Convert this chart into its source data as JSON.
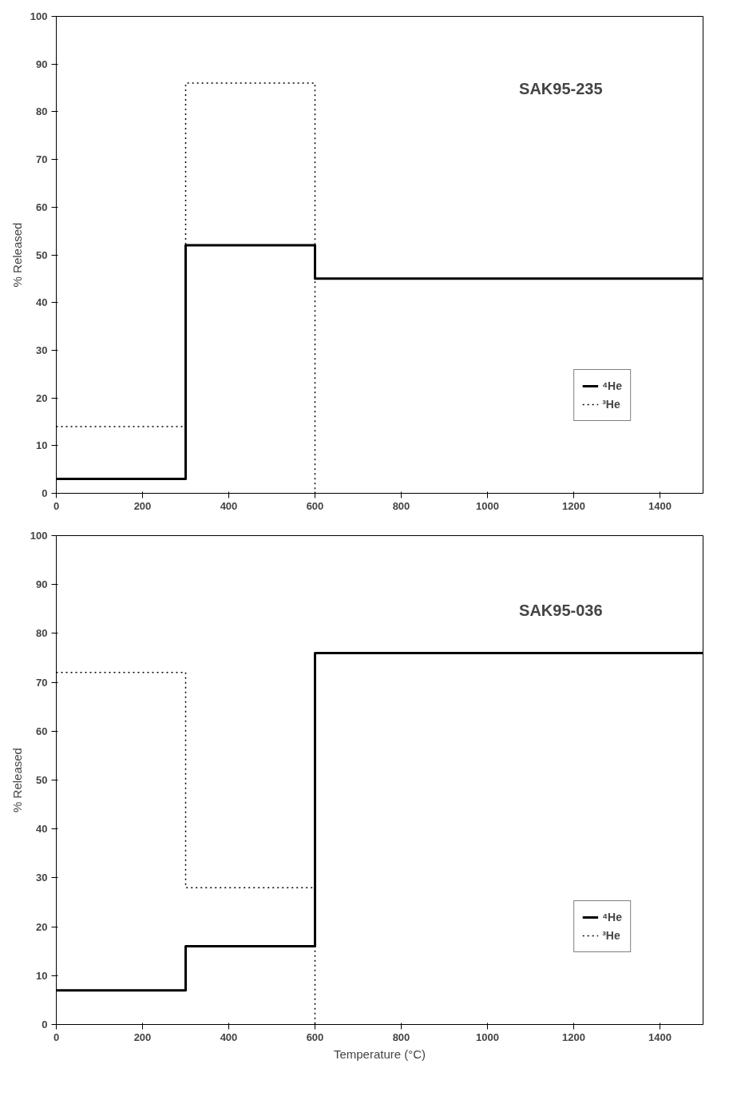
{
  "chart_data": [
    {
      "type": "step",
      "ylabel": "% Released",
      "annotations": [
        "SAK95-235"
      ],
      "xlim": [
        0,
        1500
      ],
      "ylim": [
        0,
        100
      ],
      "xticks": [
        0,
        200,
        400,
        600,
        800,
        1000,
        1200,
        1400
      ],
      "yticks": [
        0,
        10,
        20,
        30,
        40,
        50,
        60,
        70,
        80,
        90,
        100
      ],
      "grid": false,
      "legend": "bottom right",
      "marker": "none",
      "series": [
        {
          "name": "⁴He",
          "color": "#000000",
          "line_style": "solid",
          "x": [
            0,
            300,
            600,
            1500
          ],
          "values": [
            3,
            52,
            45,
            45
          ]
        },
        {
          "name": "³He",
          "color": "#000000",
          "line_style": "dotted",
          "x": [
            0,
            300,
            600,
            600
          ],
          "values": [
            14,
            86,
            86,
            0
          ]
        }
      ]
    },
    {
      "type": "step",
      "xlabel": "Temperature (°C)",
      "ylabel": "% Released",
      "annotations": [
        "SAK95-036"
      ],
      "xlim": [
        0,
        1500
      ],
      "ylim": [
        0,
        100
      ],
      "xticks": [
        0,
        200,
        400,
        600,
        800,
        1000,
        1200,
        1400
      ],
      "yticks": [
        0,
        10,
        20,
        30,
        40,
        50,
        60,
        70,
        80,
        90,
        100
      ],
      "grid": false,
      "legend": "bottom right",
      "marker": "none",
      "series": [
        {
          "name": "⁴He",
          "color": "#000000",
          "line_style": "solid",
          "x": [
            0,
            300,
            600,
            1500
          ],
          "values": [
            7,
            16,
            76,
            76
          ]
        },
        {
          "name": "³He",
          "color": "#000000",
          "line_style": "dotted",
          "x": [
            0,
            300,
            600,
            600
          ],
          "values": [
            72,
            28,
            28,
            0
          ]
        }
      ]
    }
  ]
}
